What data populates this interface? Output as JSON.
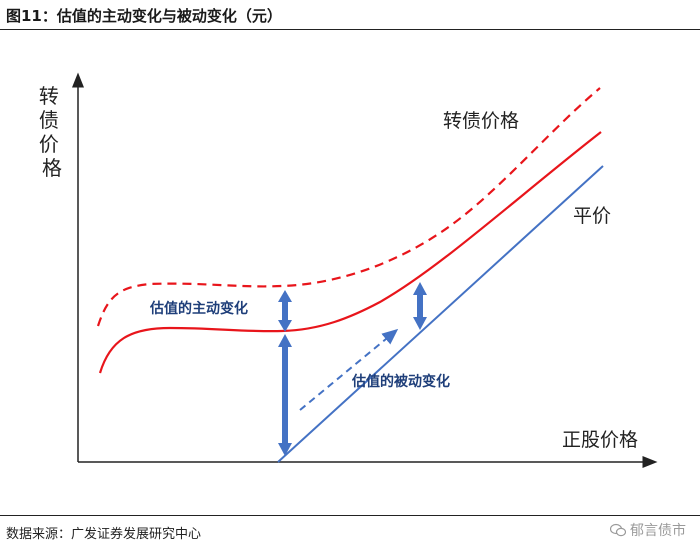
{
  "figure": {
    "title": "图11：估值的主动变化与被动变化（元）",
    "source": "数据来源：广发证券发展研究中心",
    "watermark": "郁言债市"
  },
  "diagram": {
    "y_axis_label": "转债价格",
    "x_axis_label": "正股价格",
    "curve_dashed_label": "转债价格",
    "parity_label": "平价",
    "active_label": "估值的主动变化",
    "passive_label": "估值的被动变化",
    "colors": {
      "convertible_curve": "#e8151b",
      "parity_line": "#4472c4",
      "annotation_text": "#1f3f7a",
      "arrow": "#4472c4",
      "axis": "#222222"
    }
  }
}
